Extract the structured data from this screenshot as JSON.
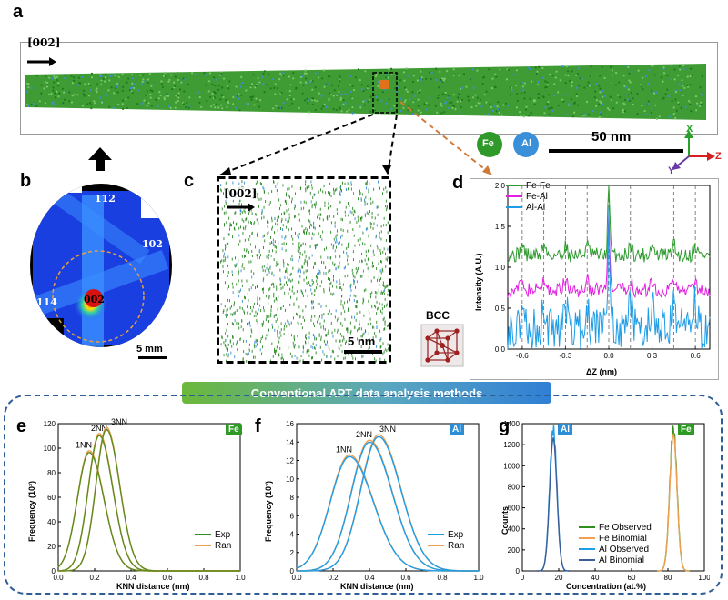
{
  "panels": {
    "a": "a",
    "b": "b",
    "c": "c",
    "d": "d",
    "e": "e",
    "f": "f",
    "g": "g"
  },
  "panel_a": {
    "direction_label": "[002]",
    "legend_fe": "Fe",
    "legend_al": "Al",
    "scale_bar": "50 nm",
    "axis_x": "X",
    "axis_y": "Y",
    "axis_z": "Z",
    "colors": {
      "fe": "#2f9a2a",
      "al": "#3a8fd9",
      "highlight": "#e2711d"
    }
  },
  "panel_b": {
    "poles": [
      "112",
      "102",
      "114",
      "002"
    ],
    "scale_bar": "5 mm"
  },
  "panel_c": {
    "direction_label": "[002]",
    "scale_bar": "5 nm",
    "bcc_label": "BCC"
  },
  "panel_d": {
    "legend": [
      "Fe-Fe",
      "Fe-Al",
      "Al-Al"
    ],
    "ylabel": "Intensity (A.U.)",
    "xlabel": "ΔZ (nm)",
    "xticks": [
      "-0.6",
      "-0.3",
      "0.0",
      "0.3",
      "0.6"
    ],
    "yticks": [
      "0.0",
      "0.5",
      "1.0",
      "1.5",
      "2.0"
    ]
  },
  "banner": "Conventional APT data analysis methods",
  "panel_e": {
    "badge": "Fe",
    "ylabel": "Frequency (10³)",
    "xlabel": "KNN distance (nm)",
    "xticks": [
      "0.0",
      "0.2",
      "0.4",
      "0.6",
      "0.8",
      "1.0"
    ],
    "yticks": [
      "0",
      "20",
      "40",
      "60",
      "80",
      "100",
      "120"
    ],
    "curve_labels": [
      "1NN",
      "2NN",
      "3NN"
    ],
    "legend": [
      "Exp",
      "Ran"
    ]
  },
  "panel_f": {
    "badge": "Al",
    "ylabel": "Frequency (10³)",
    "xlabel": "KNN distance (nm)",
    "xticks": [
      "0.0",
      "0.2",
      "0.4",
      "0.6",
      "0.8",
      "1.0"
    ],
    "yticks": [
      "0",
      "2",
      "4",
      "6",
      "8",
      "10",
      "12",
      "14",
      "16"
    ],
    "curve_labels": [
      "1NN",
      "2NN",
      "3NN"
    ],
    "legend": [
      "Exp",
      "Ran"
    ]
  },
  "panel_g": {
    "badge_al": "Al",
    "badge_fe": "Fe",
    "ylabel": "Counts",
    "xlabel": "Concentration (at.%)",
    "xticks": [
      "0",
      "20",
      "40",
      "60",
      "80",
      "100"
    ],
    "yticks": [
      "0",
      "200",
      "400",
      "600",
      "800",
      "1000",
      "1200",
      "1400"
    ],
    "legend": [
      "Fe Observed",
      "Fe Binomial",
      "Al Observed",
      "Al Binomial"
    ]
  },
  "chart_data": [
    {
      "type": "line",
      "panel": "d",
      "xlabel": "ΔZ (nm)",
      "ylabel": "Intensity (A.U.)",
      "xlim": [
        -0.7,
        0.7
      ],
      "ylim": [
        0,
        2.0
      ],
      "series": [
        {
          "name": "Fe-Fe",
          "color": "#2e9a2e",
          "baseline": 1.15,
          "peak": 2.0
        },
        {
          "name": "Fe-Al",
          "color": "#e21ee0",
          "baseline": 0.72,
          "peak": 1.5
        },
        {
          "name": "Al-Al",
          "color": "#1e9de6",
          "baseline": 0.25,
          "peak": 1.22
        }
      ],
      "periodic_peaks": [
        -0.6,
        -0.45,
        -0.3,
        -0.15,
        0.0,
        0.15,
        0.3,
        0.45,
        0.6
      ]
    },
    {
      "type": "line",
      "panel": "e",
      "xlabel": "KNN distance (nm)",
      "ylabel": "Frequency (10³)",
      "xlim": [
        0,
        1.0
      ],
      "ylim": [
        0,
        120
      ],
      "series": [
        {
          "name": "1NN",
          "mu": 0.17,
          "sigma": 0.065,
          "peak": 98
        },
        {
          "name": "2NN",
          "mu": 0.225,
          "sigma": 0.06,
          "peak": 112
        },
        {
          "name": "3NN",
          "mu": 0.265,
          "sigma": 0.058,
          "peak": 117
        }
      ],
      "legend": [
        "Exp",
        "Ran"
      ]
    },
    {
      "type": "line",
      "panel": "f",
      "xlabel": "KNN distance (nm)",
      "ylabel": "Frequency (10³)",
      "xlim": [
        0,
        1.0
      ],
      "ylim": [
        0,
        16
      ],
      "series": [
        {
          "name": "1NN",
          "mu": 0.29,
          "sigma": 0.105,
          "peak": 12.6
        },
        {
          "name": "2NN",
          "mu": 0.4,
          "sigma": 0.1,
          "peak": 14.2
        },
        {
          "name": "3NN",
          "mu": 0.45,
          "sigma": 0.098,
          "peak": 14.8
        }
      ],
      "legend": [
        "Exp",
        "Ran"
      ]
    },
    {
      "type": "line",
      "panel": "g",
      "xlabel": "Concentration (at.%)",
      "ylabel": "Counts",
      "xlim": [
        0,
        100
      ],
      "ylim": [
        0,
        1400
      ],
      "series": [
        {
          "name": "Fe Observed",
          "mu": 83,
          "sigma": 2.0,
          "peak": 1340
        },
        {
          "name": "Fe Binomial",
          "mu": 83,
          "sigma": 2.0,
          "peak": 1300
        },
        {
          "name": "Al Observed",
          "mu": 17,
          "sigma": 2.0,
          "peak": 1340
        },
        {
          "name": "Al Binomial",
          "mu": 17,
          "sigma": 2.0,
          "peak": 1260
        }
      ]
    }
  ]
}
